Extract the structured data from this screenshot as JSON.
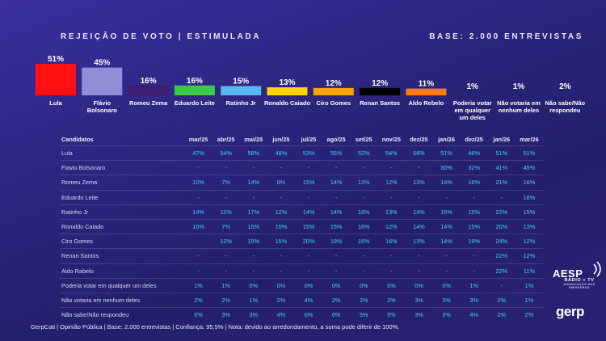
{
  "header": {
    "title": "REJEIÇÃO DE VOTO | ESTIMULADA",
    "base": "BASE: 2.000 ENTREVISTAS"
  },
  "chart_data": {
    "type": "bar",
    "title": "REJEIÇÃO DE VOTO | ESTIMULADA",
    "categories": [
      "Lula",
      "Flávio Bolsonaro",
      "Romeu Zema",
      "Eduardo Leite",
      "Ratinho Jr",
      "Ronaldo Caiado",
      "Ciro Gomes",
      "Renan Santos",
      "Aldo Rebelo",
      "Poderia votar em qualquer um deles",
      "Não votaria em nenhum deles",
      "Não sabe/Não respondeu"
    ],
    "labels": [
      [
        "Lula"
      ],
      [
        "Flávio",
        "Bolsonaro"
      ],
      [
        "Romeu Zema"
      ],
      [
        "Eduardo Leite"
      ],
      [
        "Ratinho Jr"
      ],
      [
        "Ronaldo Caiado"
      ],
      [
        "Ciro Gomes"
      ],
      [
        "Renan Santos"
      ],
      [
        "Aldo Rebelo"
      ],
      [
        "Poderia votar",
        "em qualquer",
        "um deles"
      ],
      [
        "Não votaria em",
        "nenhum deles"
      ],
      [
        "Não sabe/Não",
        "respondeu"
      ]
    ],
    "values": [
      51,
      45,
      16,
      16,
      15,
      13,
      12,
      12,
      11,
      1,
      1,
      2
    ],
    "value_labels": [
      "51%",
      "45%",
      "16%",
      "16%",
      "15%",
      "13%",
      "12%",
      "12%",
      "11%",
      "1%",
      "1%",
      "2%"
    ],
    "colors": [
      "#ff1010",
      "#8f8fd8",
      "#3b1f6e",
      "#3dc84a",
      "#5ab8f0",
      "#ffd400",
      "#ffa200",
      "#000000",
      "#ff7a1a",
      "#ffffff",
      "#ffffff",
      "#ffffff"
    ],
    "ylim": [
      0,
      51
    ],
    "xlabel": "",
    "ylabel": ""
  },
  "table": {
    "headers": [
      "Candidatos",
      "mar/25",
      "abr/25",
      "mai/25",
      "jun/25",
      "jul/25",
      "ago/25",
      "set/25",
      "nov/25",
      "dez/25",
      "jan/26",
      "dez/25",
      "jan/26",
      "mar/26"
    ],
    "rows": [
      {
        "name": "Lula",
        "values": [
          "47%",
          "54%",
          "58%",
          "48%",
          "53%",
          "55%",
          "52%",
          "54%",
          "56%",
          "51%",
          "46%",
          "51%",
          "51%"
        ]
      },
      {
        "name": "Flavio Bolsonaro",
        "values": [
          "-",
          "-",
          "-",
          "-",
          "-",
          "-",
          "-",
          "-",
          "-",
          "30%",
          "32%",
          "41%",
          "45%"
        ]
      },
      {
        "name": "Romeu Zema",
        "values": [
          "10%",
          "7%",
          "14%",
          "8%",
          "15%",
          "14%",
          "13%",
          "12%",
          "13%",
          "14%",
          "16%",
          "21%",
          "16%"
        ]
      },
      {
        "name": "Eduardo Leite",
        "values": [
          "-",
          "-",
          "-",
          "-",
          "-",
          "-",
          "-",
          "-",
          "-",
          "-",
          "-",
          "-",
          "16%"
        ]
      },
      {
        "name": "Ratinho Jr",
        "values": [
          "14%",
          "11%",
          "17%",
          "12%",
          "14%",
          "14%",
          "16%",
          "13%",
          "14%",
          "15%",
          "15%",
          "22%",
          "15%"
        ]
      },
      {
        "name": "Ronaldo Caiado",
        "values": [
          "10%",
          "7%",
          "15%",
          "10%",
          "15%",
          "15%",
          "16%",
          "12%",
          "14%",
          "14%",
          "15%",
          "20%",
          "13%"
        ]
      },
      {
        "name": "Ciro Gomes",
        "values": [
          "",
          "12%",
          "19%",
          "15%",
          "20%",
          "19%",
          "16%",
          "16%",
          "13%",
          "14%",
          "19%",
          "24%",
          "12%"
        ]
      },
      {
        "name": "Renan Santos",
        "values": [
          "-",
          "-",
          "-",
          "-",
          "-",
          "-",
          "-",
          "-",
          "-",
          "-",
          "-",
          "22%",
          "12%"
        ]
      },
      {
        "name": "Aldo Rabelo",
        "values": [
          "-",
          "-",
          "-",
          "-",
          "-",
          "-",
          "-",
          "-",
          "-",
          "-",
          "-",
          "22%",
          "11%"
        ]
      },
      {
        "name": "Poderia votar em qualquer um deles",
        "values": [
          "1%",
          "1%",
          "0%",
          "0%",
          "0%",
          "0%",
          "0%",
          "0%",
          "0%",
          "0%",
          "1%",
          "-",
          "1%"
        ]
      },
      {
        "name": "Não votaria em nenhum deles",
        "values": [
          "2%",
          "2%",
          "1%",
          "2%",
          "4%",
          "2%",
          "2%",
          "2%",
          "3%",
          "3%",
          "3%",
          "2%",
          "1%"
        ]
      },
      {
        "name": "Não sabe/Não respondeu",
        "values": [
          "6%",
          "3%",
          "3%",
          "4%",
          "6%",
          "6%",
          "5%",
          "5%",
          "3%",
          "3%",
          "4%",
          "2%",
          "2%"
        ]
      }
    ]
  },
  "footer": "GerpCati | Opinião Pública | Base: 2.000 entrevistas | Confiança: 95,5% | Nota: devido ao arredondamento, a soma pode diferir de 100%.",
  "logos": {
    "aesp": "AESP",
    "aesp_sub": "RÁDIO + TV",
    "aesp_tag": "ASSOCIAÇÃO DAS EMISSORAS",
    "gerp": "gerp"
  }
}
